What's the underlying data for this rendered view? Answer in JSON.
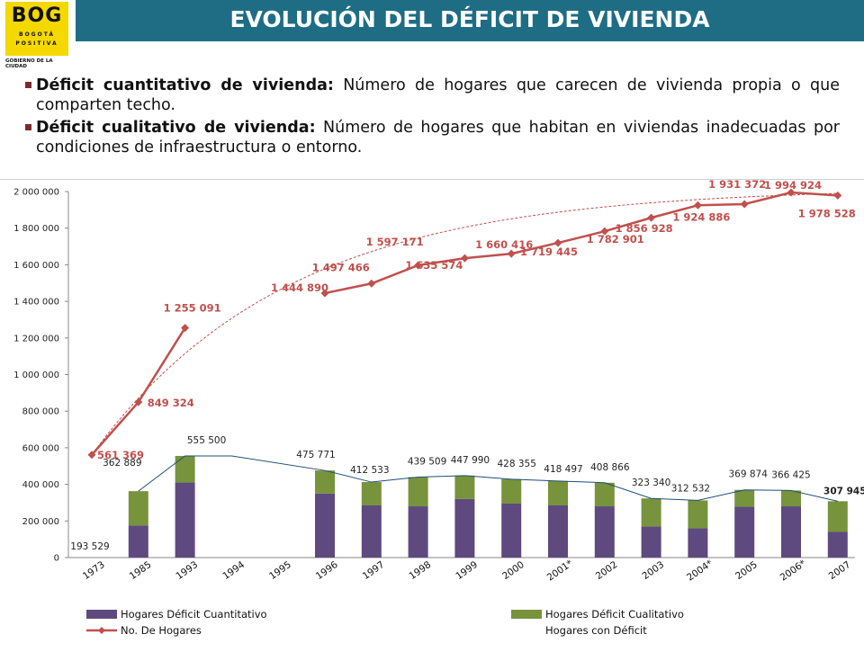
{
  "logo": {
    "text": "BOG",
    "sub1": "BOGOTÁ",
    "sub2": "POSITIVA",
    "caption": "GOBIERNO DE LA CIUDAD"
  },
  "title": "EVOLUCIÓN DEL DÉFICIT DE VIVIENDA",
  "bullets": [
    {
      "term": "Déficit cuantitativo de vivienda:",
      "text": " Número de hogares que carecen de vivienda propia o que comparten techo."
    },
    {
      "term": "Déficit cualitativo de vivienda:",
      "text": " Número de hogares que habitan en viviendas inadecuadas por condiciones de infraestructura o entorno."
    }
  ],
  "colors": {
    "title_bar": "#1e6d85",
    "cuantitativo": "#5e4a7e",
    "cualitativo": "#77933c",
    "hogares": "#c0504d",
    "deficit_line": "#1f4e79"
  },
  "chart_data": {
    "type": "bar",
    "categories": [
      "1973",
      "1985",
      "1993",
      "1994",
      "1995",
      "1996",
      "1997",
      "1998",
      "1999",
      "2000",
      "2001*",
      "2002",
      "2003",
      "2004*",
      "2005",
      "2006*",
      "2007"
    ],
    "ylim": [
      0,
      2000000
    ],
    "yticks": [
      "0",
      "200 000",
      "400 000",
      "600 000",
      "800 000",
      "1 000 000",
      "1 200 000",
      "1 400 000",
      "1 600 000",
      "1 800 000",
      "2 000 000"
    ],
    "series": [
      {
        "name": "Hogares Déficit Cuantitativo",
        "kind": "bar-stack",
        "values": [
          null,
          175000,
          410000,
          null,
          null,
          350000,
          285000,
          280000,
          320000,
          295000,
          285000,
          280000,
          170000,
          160000,
          278000,
          280000,
          140000
        ]
      },
      {
        "name": "Hogares Déficit Cualitativo",
        "kind": "bar-stack",
        "values": [
          null,
          187889,
          145500,
          null,
          null,
          125771,
          127533,
          159509,
          127990,
          133355,
          133497,
          128866,
          153340,
          152532,
          91874,
          86425,
          167945
        ]
      },
      {
        "name": "No. De Hogares",
        "kind": "line",
        "values": [
          561369,
          849324,
          1255091,
          null,
          null,
          1444890,
          1497466,
          1597171,
          1635574,
          1660416,
          1719445,
          1782901,
          1856928,
          1924886,
          1931372,
          1994924,
          1978528
        ],
        "labels": [
          "561 369",
          "849 324",
          "1 255 091",
          "",
          "",
          "1 444 890",
          "1 497 466",
          "1 597 171",
          "1 635 574",
          "1 660 416",
          "1 719 445",
          "1 782 901",
          "1 856 928",
          "1 924 886",
          "1 931 372",
          "1 994 924",
          "1 978 528"
        ]
      },
      {
        "name": "Hogares con Déficit",
        "kind": "line",
        "values": [
          193529,
          362889,
          555500,
          null,
          null,
          475771,
          412533,
          439509,
          447990,
          428355,
          418497,
          408866,
          323340,
          312532,
          369874,
          366425,
          307945
        ],
        "labels": [
          "193 529",
          "362 889",
          "555 500",
          "",
          "",
          "475 771",
          "412 533",
          "439 509",
          "447 990",
          "428 355",
          "418 497",
          "408 866",
          "323 340",
          "312 532",
          "369 874",
          "366 425",
          "307 945"
        ]
      }
    ],
    "legend": [
      {
        "name": "Hogares Déficit Cuantitativo",
        "marker": "box",
        "color": "#5e4a7e"
      },
      {
        "name": "Hogares Déficit Cualitativo",
        "marker": "box",
        "color": "#77933c"
      },
      {
        "name": "No. De Hogares",
        "marker": "line-diamond",
        "color": "#c0504d"
      },
      {
        "name": "Hogares con Déficit",
        "marker": "none",
        "color": "#1f4e79"
      }
    ],
    "trendline": {
      "series": "No. De Hogares",
      "style": "dashed"
    },
    "legend_position": "bottom",
    "grid": false
  }
}
